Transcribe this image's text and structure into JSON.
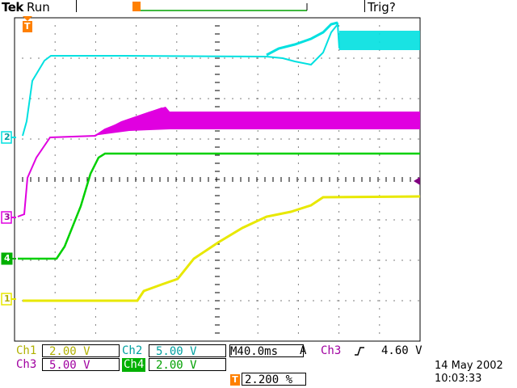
{
  "header": {
    "brand": "Tek",
    "state": "Run",
    "trigger_status": "Trig?"
  },
  "markers": {
    "trigger_position": "T",
    "ch1": "1",
    "ch2": "2",
    "ch3": "3",
    "ch4": "4"
  },
  "readouts": {
    "ch1_label": "Ch1",
    "ch1_scale": "2.00 V",
    "ch2_label": "Ch2",
    "ch2_scale": "5.00 V",
    "ch3_label": "Ch3",
    "ch3_scale": "5.00 V",
    "ch4_label": "Ch4",
    "ch4_scale": "2.00 V",
    "timebase": "M40.0ms",
    "trigger_mode": "A",
    "trigger_source": "Ch3",
    "trigger_slope_icon": "rising-edge-icon",
    "trigger_level": "4.60 V",
    "trigger_offset_marker": "T",
    "trigger_offset": "2.200 %"
  },
  "date": {
    "day": "14 May 2002",
    "time": "10:03:33"
  },
  "colors": {
    "ch1": "#e8e800",
    "ch2": "#00e0e0",
    "ch3": "#e000e0",
    "ch4": "#00d000",
    "trigger": "#ff8000"
  }
}
